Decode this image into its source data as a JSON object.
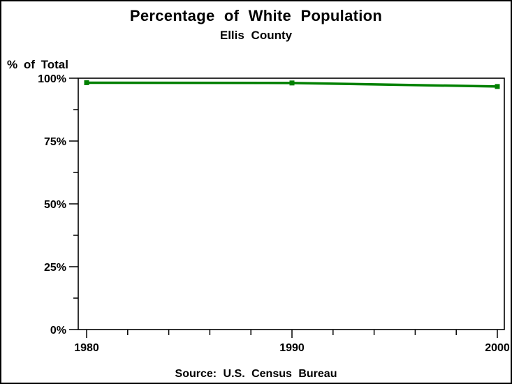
{
  "chart_data": {
    "type": "line",
    "title": "Percentage of White Population",
    "subtitle": "Ellis County",
    "ylabel": "% of Total",
    "source": "Source: U.S. Census Bureau",
    "series": [
      {
        "name": "white-population-percentage",
        "x": [
          1980,
          1990,
          2000
        ],
        "values": [
          98.2,
          98.1,
          96.7
        ]
      }
    ],
    "ylim": [
      0,
      100
    ],
    "yticks": [
      {
        "value": 0,
        "label": "0%"
      },
      {
        "value": 25,
        "label": "25%"
      },
      {
        "value": 50,
        "label": "50%"
      },
      {
        "value": 75,
        "label": "75%"
      },
      {
        "value": 100,
        "label": "100%"
      }
    ],
    "yminor": [
      12.5,
      37.5,
      62.5,
      87.5
    ],
    "xticks": [
      {
        "value": 1980,
        "label": "1980"
      },
      {
        "value": 1990,
        "label": "1990"
      },
      {
        "value": 2000,
        "label": "2000"
      }
    ],
    "xminor": [
      1982,
      1984,
      1986,
      1988,
      1992,
      1994,
      1996,
      1998
    ],
    "grid": "off",
    "legend": "none",
    "line_color": "#008000",
    "axis_color": "#000000",
    "background_color": "#ffffff"
  }
}
